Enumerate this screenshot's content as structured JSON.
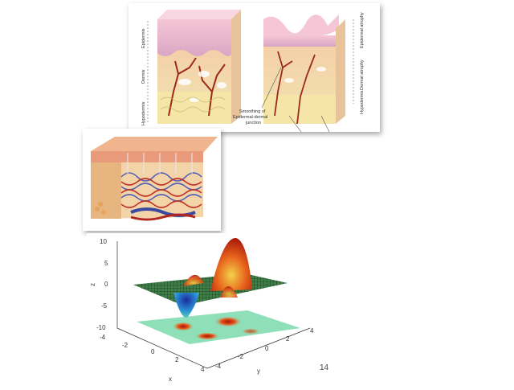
{
  "top_diagram": {
    "layer_labels_left": [
      "Epidermis",
      "Dermis",
      "Hypodermis"
    ],
    "layer_labels_right": [
      "Epidermal atrophy",
      "Dermal atrophy",
      "Hypodermis"
    ],
    "caption_line1": "Smoothing of",
    "caption_line2": "Epidermal-dermal",
    "caption_line3": "junction"
  },
  "plot": {
    "z_ticks": [
      "10",
      "5",
      "0",
      "-5",
      "-10"
    ],
    "x_ticks": [
      "-4",
      "-2",
      "0",
      "2",
      "4"
    ],
    "y_ticks": [
      "-4",
      "-2",
      "0",
      "2",
      "4"
    ],
    "xlabel": "x",
    "ylabel": "y",
    "zlabel": "z"
  },
  "page_number": "14"
}
